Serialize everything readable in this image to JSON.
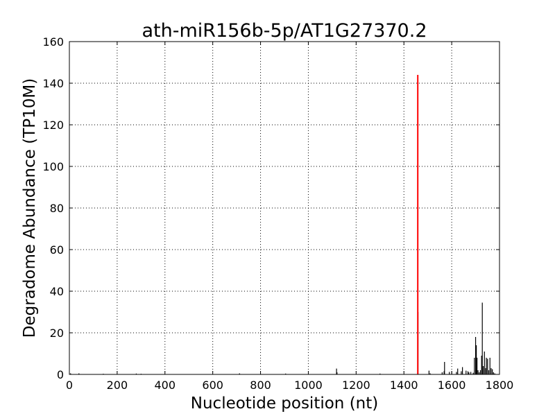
{
  "chart_data": {
    "type": "bar",
    "title": "ath-miR156b-5p/AT1G27370.2",
    "xlabel": "Nucleotide position (nt)",
    "ylabel": "Degradome Abundance (TP10M)",
    "xlim": [
      0,
      1800
    ],
    "ylim": [
      0,
      160
    ],
    "xticks": [
      0,
      200,
      400,
      600,
      800,
      1000,
      1200,
      1400,
      1600,
      1800
    ],
    "yticks": [
      0,
      20,
      40,
      60,
      80,
      100,
      120,
      140,
      160
    ],
    "grid": true,
    "legend": "none",
    "colors": {
      "background_series": "#000000",
      "target_site": "#ff0000"
    },
    "series": [
      {
        "role": "background",
        "x": [
          5,
          40,
          142,
          280,
          300,
          712,
          905,
          1118,
          1120,
          1300,
          1459,
          1505,
          1510,
          1560,
          1568,
          1570,
          1590,
          1600,
          1620,
          1625,
          1640,
          1645,
          1660,
          1668,
          1672,
          1680,
          1690,
          1695,
          1700,
          1703,
          1706,
          1710,
          1715,
          1720,
          1725,
          1728,
          1732,
          1737,
          1742,
          1745,
          1750,
          1755,
          1760,
          1765,
          1770,
          1775,
          1780
        ],
        "values": [
          0.5,
          0.5,
          0.3,
          0.4,
          0.3,
          0.5,
          0.4,
          2.8,
          1.0,
          0.4,
          30,
          1.8,
          0.5,
          1.0,
          1.5,
          6.0,
          1.2,
          1.5,
          1.2,
          2.8,
          1.5,
          3.5,
          1.8,
          1.5,
          1.0,
          1.2,
          0.8,
          8.0,
          18.0,
          14.0,
          8.0,
          2.0,
          1.0,
          2.0,
          9.0,
          34.5,
          4.0,
          11.0,
          3.0,
          8.0,
          7.5,
          2.0,
          8.0,
          3.0,
          2.5,
          1.0,
          0.5
        ]
      },
      {
        "role": "target-site",
        "x": [
          1458
        ],
        "values": [
          144
        ]
      }
    ]
  }
}
